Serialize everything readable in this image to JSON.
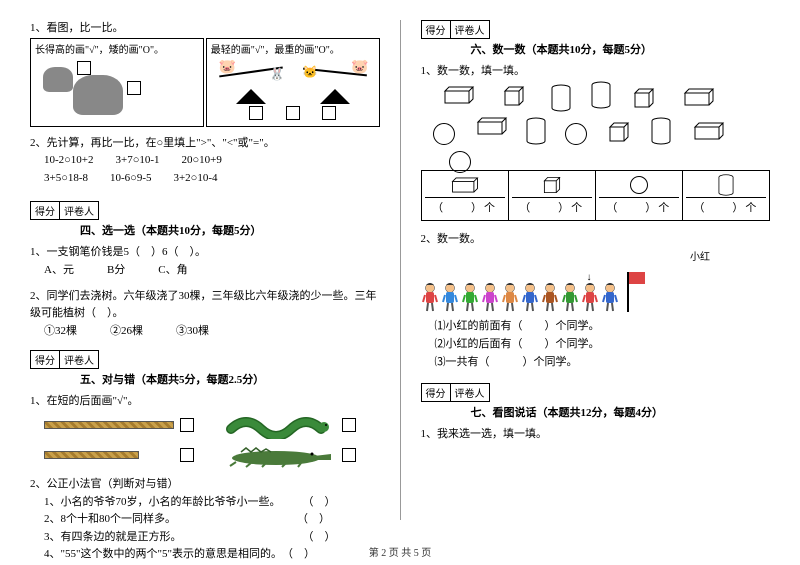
{
  "left": {
    "q1": {
      "num": "1、看图，比一比。",
      "panel1": "长得高的画\"√\"，矮的画\"O\"。",
      "panel2": "最轻的画\"√\"，最重的画\"O\"。"
    },
    "q2": {
      "num": "2、先计算，再比一比，在○里填上\">\"、\"<\"或\"=\"。",
      "line1": "10-2○10+2　　3+7○10-1　　20○10+9",
      "line2": "3+5○18-8　　10-6○9-5　　3+2○10-4"
    },
    "score": {
      "a": "得分",
      "b": "评卷人"
    },
    "sec4": {
      "title": "四、选一选（本题共10分，每题5分）",
      "q1": "1、一支钢笔价钱是5（　）6（　）。",
      "q1opts": "A、元　　　B分　　　C、角",
      "q2": "2、同学们去浇树。六年级浇了30棵，三年级比六年级浇的少一些。三年级可能植树（　）。",
      "q2opts": "①32棵　　　②26棵　　　③30棵"
    },
    "sec5": {
      "title": "五、对与错（本题共5分，每题2.5分）",
      "q1": "1、在短的后面画\"√\"。",
      "q2": "2、公正小法官（判断对与错）",
      "j1": "1、小名的爷爷70岁，小名的年龄比爷爷小一些。　　　（　）",
      "j2": "2、8个十和80个一同样多。　　　　　　　　　　　　（　）",
      "j3": "3、有四条边的就是正方形。　　　　　　　　　　　　（　）",
      "j4": "4、\"55\"这个数中的两个\"5\"表示的意思是相同的。　（　）"
    }
  },
  "right": {
    "score": {
      "a": "得分",
      "b": "评卷人"
    },
    "sec6": {
      "title": "六、数一数（本题共10分，每题5分）",
      "q1": "1、数一数，填一填。",
      "blank": "（　　）个"
    },
    "q2kids": {
      "num": "2、数一数。",
      "label": "小红",
      "a": "⑴小红的前面有（　　）个同学。",
      "b": "⑵小红的后面有（　　）个同学。",
      "c": "⑶一共有（　　　）个同学。"
    },
    "sec7": {
      "title": "七、看图说话（本题共12分，每题4分）",
      "q1": "1、我来选一选，填一填。"
    }
  },
  "footer": "第 2 页 共 5 页",
  "colors": {
    "snake_body": "#3a8a3a",
    "snake_dark": "#246624",
    "croc_body": "#4a7a3a",
    "kid_colors": [
      "#d44",
      "#38d",
      "#3a3",
      "#c4c",
      "#d84",
      "#36c",
      "#a52",
      "#393",
      "#d44",
      "#36c"
    ],
    "flag": "#d44",
    "bar": "#c9a04a"
  }
}
